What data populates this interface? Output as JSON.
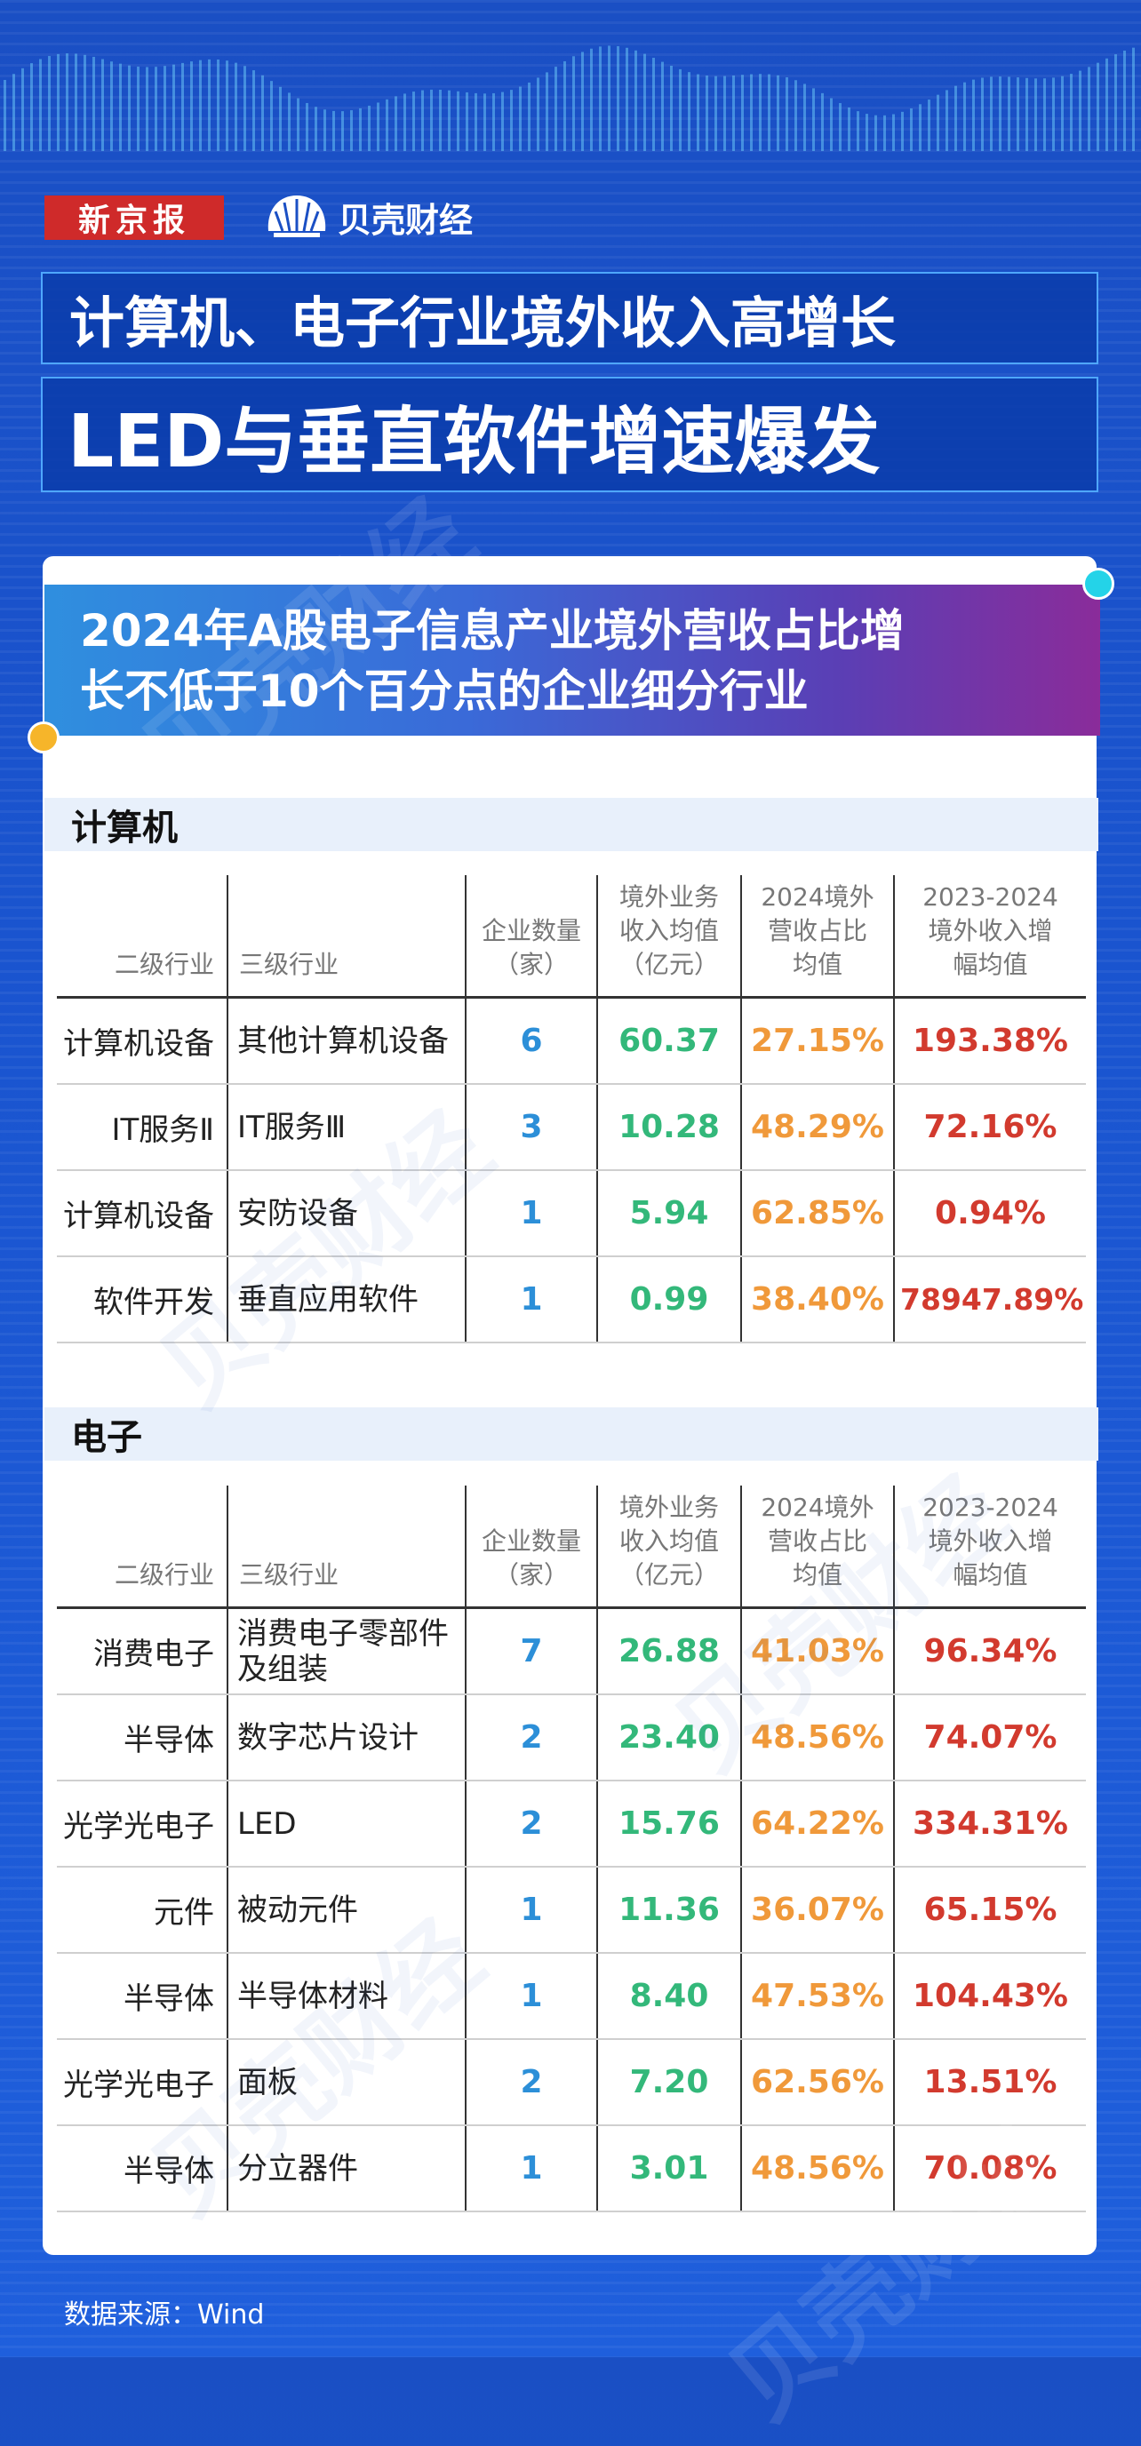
{
  "brand": {
    "newspaper": "新京报",
    "finance": "贝壳财经",
    "watermark": "贝壳财经"
  },
  "title": {
    "line1": "计算机、电子行业境外收入高增长",
    "line2": "LED与垂直软件增速爆发"
  },
  "card_title": {
    "line1": "2024年A股电子信息产业境外营收占比增",
    "line2": "长不低于10个百分点的企业细分行业"
  },
  "headers": {
    "c1": "二级行业",
    "c2": "三级行业",
    "c3": [
      "企业数量",
      "（家）"
    ],
    "c4": [
      "境外业务",
      "收入均值",
      "（亿元）"
    ],
    "c5": [
      "2024境外",
      "营收占比",
      "均值"
    ],
    "c6": [
      "2023-2024",
      "境外收入增",
      "幅均值"
    ]
  },
  "sections": [
    {
      "name": "计算机",
      "rows": [
        {
          "l2": "计算机设备",
          "l3": "其他计算机设备",
          "count": "6",
          "revenue": "60.37",
          "share": "27.15%",
          "growth": "193.38%"
        },
        {
          "l2": "IT服务Ⅱ",
          "l3": "IT服务Ⅲ",
          "count": "3",
          "revenue": "10.28",
          "share": "48.29%",
          "growth": "72.16%"
        },
        {
          "l2": "计算机设备",
          "l3": "安防设备",
          "count": "1",
          "revenue": "5.94",
          "share": "62.85%",
          "growth": "0.94%"
        },
        {
          "l2": "软件开发",
          "l3": "垂直应用软件",
          "count": "1",
          "revenue": "0.99",
          "share": "38.40%",
          "growth": "78947.89%"
        }
      ]
    },
    {
      "name": "电子",
      "rows": [
        {
          "l2": "消费电子",
          "l3": "消费电子零部件及组装",
          "count": "7",
          "revenue": "26.88",
          "share": "41.03%",
          "growth": "96.34%"
        },
        {
          "l2": "半导体",
          "l3": "数字芯片设计",
          "count": "2",
          "revenue": "23.40",
          "share": "48.56%",
          "growth": "74.07%"
        },
        {
          "l2": "光学光电子",
          "l3": "LED",
          "count": "2",
          "revenue": "15.76",
          "share": "64.22%",
          "growth": "334.31%"
        },
        {
          "l2": "元件",
          "l3": "被动元件",
          "count": "1",
          "revenue": "11.36",
          "share": "36.07%",
          "growth": "65.15%"
        },
        {
          "l2": "半导体",
          "l3": "半导体材料",
          "count": "1",
          "revenue": "8.40",
          "share": "47.53%",
          "growth": "104.43%"
        },
        {
          "l2": "光学光电子",
          "l3": "面板",
          "count": "2",
          "revenue": "7.20",
          "share": "62.56%",
          "growth": "13.51%"
        },
        {
          "l2": "半导体",
          "l3": "分立器件",
          "count": "1",
          "revenue": "3.01",
          "share": "48.56%",
          "growth": "70.08%"
        }
      ]
    }
  ],
  "source": "数据来源：Wind",
  "colors": {
    "background": "#1a4fc4",
    "count": "#2c8fd8",
    "revenue": "#33b87a",
    "share": "#f0993a",
    "growth": "#d23a2e",
    "logo_red": "#cf2a2a"
  }
}
